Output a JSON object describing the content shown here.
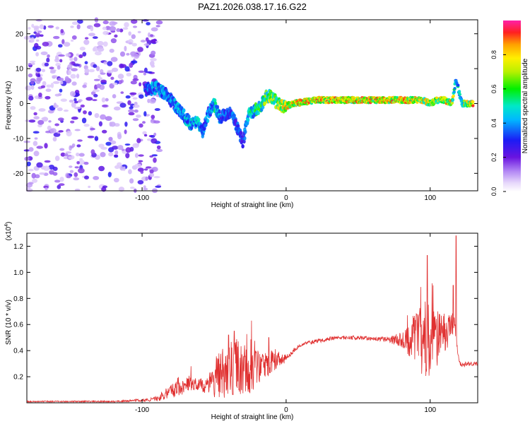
{
  "title": "PAZ1.2026.038.17.16.G22",
  "chart_data": [
    {
      "type": "heatmap",
      "name": "spectrogram",
      "xlabel": "Height of straight line (km)",
      "ylabel": "Frequency (Hz)",
      "xlim": [
        -180,
        133
      ],
      "ylim": [
        -25,
        24
      ],
      "xticks": [
        -100,
        0,
        100
      ],
      "yticks": [
        -20,
        -10,
        0,
        10,
        20
      ],
      "colorbar": {
        "label": "Normalized spectral amplitude",
        "range": [
          0,
          1
        ],
        "ticks": [
          0.0,
          0.2,
          0.4,
          0.6,
          0.8
        ],
        "tick_labels": [
          "0.0",
          "0.2",
          "0.4",
          "0.6",
          "0.8"
        ]
      },
      "noise_region": {
        "x_range": [
          -180,
          -88
        ],
        "freq_range": [
          -25,
          24
        ],
        "amplitude": [
          0.0,
          0.25
        ]
      },
      "ridge": {
        "description": "dominant frequency trace",
        "x": [
          -98,
          -90,
          -84,
          -78,
          -72,
          -66,
          -62,
          -58,
          -54,
          -50,
          -46,
          -42,
          -38,
          -34,
          -30,
          -26,
          -22,
          -18,
          -14,
          -10,
          -6,
          -2,
          5,
          20,
          40,
          60,
          80,
          95,
          100,
          105,
          110,
          115,
          118,
          122,
          126,
          130
        ],
        "frequency": [
          4,
          4.5,
          3,
          0,
          -3,
          -6,
          -5,
          -8,
          -3,
          0,
          -4,
          -3,
          -2,
          -7,
          -11,
          -3,
          -2,
          -1,
          2,
          2,
          0,
          -1,
          0,
          1,
          1,
          1,
          1,
          1,
          0,
          1,
          1,
          0,
          7,
          0,
          0,
          0
        ],
        "amplitude": [
          0.35,
          0.5,
          0.45,
          0.45,
          0.5,
          0.5,
          0.55,
          0.4,
          0.45,
          0.55,
          0.45,
          0.4,
          0.4,
          0.4,
          0.35,
          0.55,
          0.6,
          0.65,
          0.7,
          0.75,
          0.8,
          0.85,
          0.9,
          0.9,
          0.9,
          0.9,
          0.9,
          0.85,
          0.8,
          0.8,
          0.85,
          0.9,
          0.55,
          0.5,
          0.9,
          0.9
        ]
      }
    },
    {
      "type": "line",
      "name": "snr",
      "xlabel": "Height of straight line (km)",
      "ylabel": "SNR (10 * v/v)",
      "scale_label": "(x10",
      "scale_exponent": "4",
      "xlim": [
        -180,
        133
      ],
      "ylim": [
        0,
        1.3
      ],
      "xticks": [
        -100,
        0,
        100
      ],
      "yticks": [
        0.2,
        0.4,
        0.6,
        0.8,
        1.0,
        1.2
      ],
      "ytick_labels": [
        "0.2",
        "0.4",
        "0.6",
        "0.8",
        "1.0",
        "1.2"
      ],
      "color": "#e03030",
      "envelope": {
        "x": [
          -180,
          -150,
          -120,
          -100,
          -90,
          -85,
          -80,
          -75,
          -70,
          -65,
          -60,
          -55,
          -50,
          -45,
          -40,
          -35,
          -30,
          -25,
          -20,
          -15,
          -10,
          -5,
          0,
          5,
          10,
          15,
          20,
          25,
          30,
          40,
          50,
          60,
          70,
          80,
          85,
          90,
          95,
          100,
          105,
          110,
          115,
          117,
          120,
          125,
          133
        ],
        "base": [
          0.01,
          0.01,
          0.01,
          0.02,
          0.03,
          0.06,
          0.09,
          0.12,
          0.14,
          0.14,
          0.14,
          0.13,
          0.15,
          0.22,
          0.26,
          0.26,
          0.27,
          0.24,
          0.27,
          0.3,
          0.32,
          0.33,
          0.34,
          0.4,
          0.44,
          0.46,
          0.47,
          0.48,
          0.49,
          0.5,
          0.5,
          0.49,
          0.49,
          0.48,
          0.47,
          0.47,
          0.47,
          0.47,
          0.5,
          0.54,
          0.58,
          0.6,
          0.3,
          0.3,
          0.3
        ],
        "noise": [
          0.005,
          0.005,
          0.006,
          0.01,
          0.02,
          0.04,
          0.05,
          0.08,
          0.06,
          0.05,
          0.05,
          0.06,
          0.12,
          0.22,
          0.2,
          0.22,
          0.2,
          0.18,
          0.15,
          0.12,
          0.1,
          0.05,
          0.03,
          0.02,
          0.015,
          0.015,
          0.015,
          0.015,
          0.015,
          0.015,
          0.015,
          0.015,
          0.02,
          0.06,
          0.12,
          0.22,
          0.32,
          0.28,
          0.22,
          0.15,
          0.12,
          0.05,
          0.03,
          0.02,
          0.015
        ]
      },
      "peaks": {
        "x": [
          -66,
          -40,
          -36,
          -24,
          -12,
          98,
          102,
          116,
          118
        ],
        "y": [
          0.28,
          0.52,
          0.55,
          0.63,
          0.5,
          1.13,
          0.9,
          0.9,
          1.28
        ]
      }
    }
  ]
}
